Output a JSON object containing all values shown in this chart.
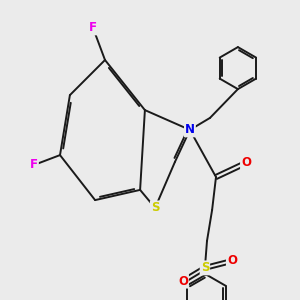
{
  "background_color": "#ebebeb",
  "bond_color": "#1a1a1a",
  "atom_colors": {
    "F": "#ee00ee",
    "N": "#0000ee",
    "S": "#cccc00",
    "O": "#ee0000",
    "C": "#1a1a1a"
  },
  "bond_width": 1.4,
  "fig_width": 3.0,
  "fig_height": 3.0,
  "dpi": 100
}
